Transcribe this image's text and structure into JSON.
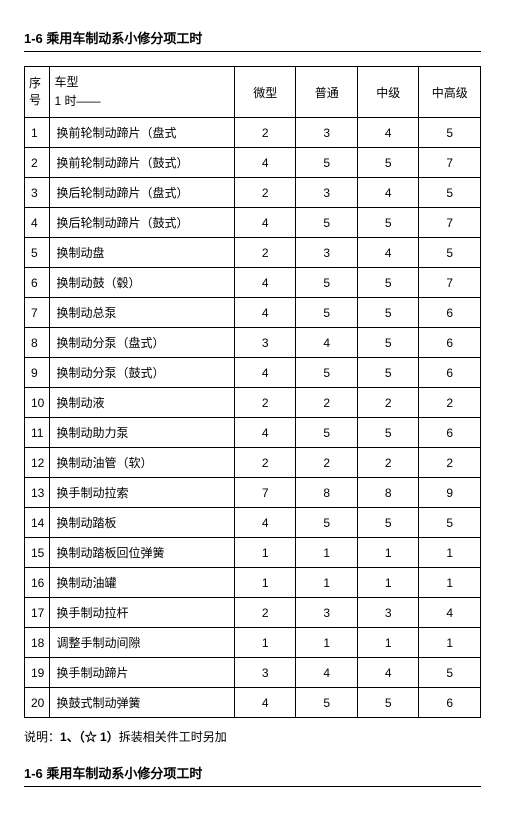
{
  "title": "1-6 乘用车制动系小修分项工时",
  "header": {
    "seq": "序号",
    "model_line1": "车型",
    "model_line2": "1 时——",
    "cols": [
      "微型",
      "普通",
      "中级",
      "中高级"
    ]
  },
  "rows": [
    {
      "n": "1",
      "name": "换前轮制动蹄片（盘式",
      "v": [
        "2",
        "3",
        "4",
        "5"
      ]
    },
    {
      "n": "2",
      "name": "换前轮制动蹄片（鼓式）",
      "v": [
        "4",
        "5",
        "5",
        "7"
      ]
    },
    {
      "n": "3",
      "name": "换后轮制动蹄片（盘式）",
      "v": [
        "2",
        "3",
        "4",
        "5"
      ]
    },
    {
      "n": "4",
      "name": "换后轮制动蹄片（鼓式）",
      "v": [
        "4",
        "5",
        "5",
        "7"
      ]
    },
    {
      "n": "5",
      "name": "换制动盘",
      "v": [
        "2",
        "3",
        "4",
        "5"
      ]
    },
    {
      "n": "6",
      "name": "换制动鼓（毂）",
      "v": [
        "4",
        "5",
        "5",
        "7"
      ]
    },
    {
      "n": "7",
      "name": "换制动总泵",
      "v": [
        "4",
        "5",
        "5",
        "6"
      ]
    },
    {
      "n": "8",
      "name": "换制动分泵（盘式）",
      "v": [
        "3",
        "4",
        "5",
        "6"
      ]
    },
    {
      "n": "9",
      "name": "换制动分泵（鼓式）",
      "v": [
        "4",
        "5",
        "5",
        "6"
      ]
    },
    {
      "n": "10",
      "name": "换制动液",
      "v": [
        "2",
        "2",
        "2",
        "2"
      ]
    },
    {
      "n": "11",
      "name": "换制动助力泵",
      "v": [
        "4",
        "5",
        "5",
        "6"
      ]
    },
    {
      "n": "12",
      "name": "换制动油管（软）",
      "v": [
        "2",
        "2",
        "2",
        "2"
      ]
    },
    {
      "n": "13",
      "name": "换手制动拉索",
      "v": [
        "7",
        "8",
        "8",
        "9"
      ]
    },
    {
      "n": "14",
      "name": "换制动踏板",
      "v": [
        "4",
        "5",
        "5",
        "5"
      ]
    },
    {
      "n": "15",
      "name": "换制动踏板回位弹簧",
      "v": [
        "1",
        "1",
        "1",
        "1"
      ]
    },
    {
      "n": "16",
      "name": "换制动油罐",
      "v": [
        "1",
        "1",
        "1",
        "1"
      ]
    },
    {
      "n": "17",
      "name": "换手制动拉杆",
      "v": [
        "2",
        "3",
        "3",
        "4"
      ]
    },
    {
      "n": "18",
      "name": "调整手制动间隙",
      "v": [
        "1",
        "1",
        "1",
        "1"
      ]
    },
    {
      "n": "19",
      "name": "换手制动蹄片",
      "v": [
        "3",
        "4",
        "4",
        "5"
      ]
    },
    {
      "n": "20",
      "name": "换鼓式制动弹簧",
      "v": [
        "4",
        "5",
        "5",
        "6"
      ]
    }
  ],
  "note_prefix": "说明：",
  "note_bold": "1、（☆ 1）",
  "note_rest": "拆装相关件工时另加",
  "title2": "1-6 乘用车制动系小修分项工时"
}
